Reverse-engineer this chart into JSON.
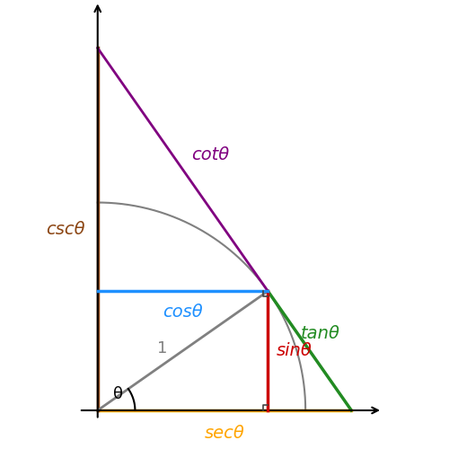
{
  "theta_deg": 35,
  "background_color": "#ffffff",
  "colors": {
    "sin": "#cc0000",
    "cos": "#1e90ff",
    "tan": "#228b22",
    "csc": "#8b4513",
    "sec": "#ffa500",
    "cot": "#800080",
    "radius": "#808080",
    "axis": "#000000",
    "angle_arc": "#000000",
    "right_angle": "#444444"
  },
  "labels": {
    "sin": "sinθ",
    "cos": "cosθ",
    "tan": "tanθ",
    "csc": "cscθ",
    "sec": "secθ",
    "cot": "cotθ",
    "one": "1",
    "theta": "θ"
  },
  "label_fontsizes": {
    "sin": 14,
    "cos": 14,
    "tan": 14,
    "csc": 14,
    "sec": 14,
    "cot": 14,
    "one": 13,
    "theta": 13
  }
}
